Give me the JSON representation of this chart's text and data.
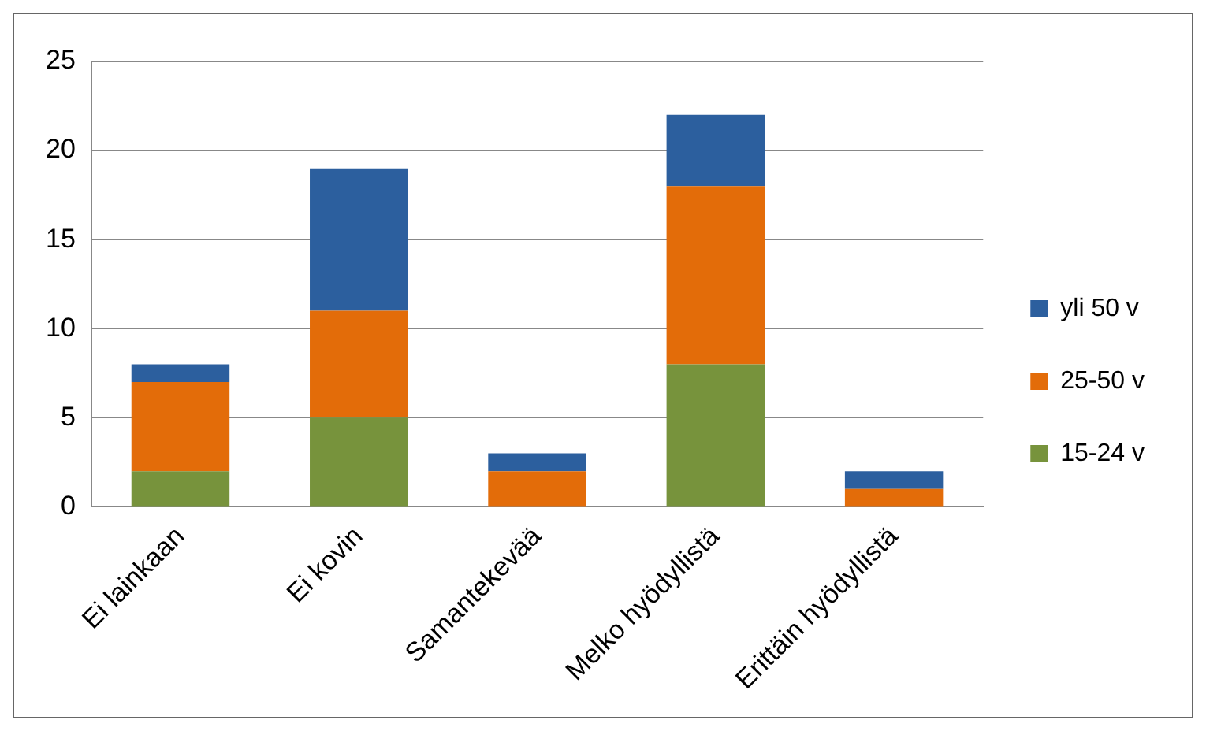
{
  "chart_data": {
    "type": "bar",
    "stacked": true,
    "categories": [
      "Ei lainkaan",
      "Ei kovin",
      "Samantekevää",
      "Melko hyödyllistä",
      "Erittäin hyödyllistä"
    ],
    "series": [
      {
        "name": "15-24 v",
        "color": "#77933c",
        "values": [
          2,
          5,
          0,
          8,
          0
        ]
      },
      {
        "name": "25-50 v",
        "color": "#e36c09",
        "values": [
          5,
          6,
          2,
          10,
          1
        ]
      },
      {
        "name": "yli 50 v",
        "color": "#2c5f9e",
        "values": [
          1,
          8,
          1,
          4,
          1
        ]
      }
    ],
    "ylim": [
      0,
      25
    ],
    "yticks": [
      0,
      5,
      10,
      15,
      20,
      25
    ],
    "grid": "y",
    "legend": "right"
  }
}
